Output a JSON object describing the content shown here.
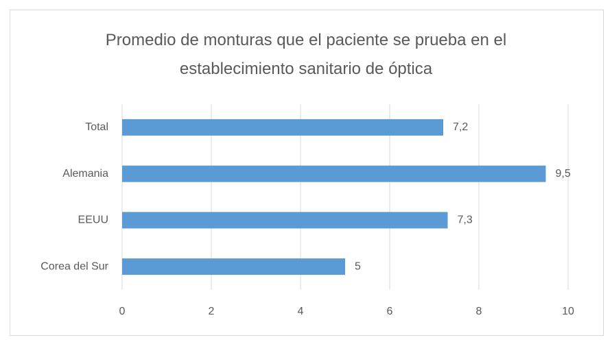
{
  "chart_data": {
    "type": "bar",
    "orientation": "horizontal",
    "title": "Promedio de monturas que el paciente se prueba en el establecimiento sanitario de óptica",
    "categories": [
      "Total",
      "Alemania",
      "EEUU",
      "Corea del Sur"
    ],
    "values": [
      7.2,
      9.5,
      7.3,
      5
    ],
    "value_labels": [
      "7,2",
      "9,5",
      "7,3",
      "5"
    ],
    "color": "#5b9bd5",
    "xlim": [
      0,
      10
    ],
    "xticks": [
      0,
      2,
      4,
      6,
      8,
      10
    ],
    "grid": true
  }
}
